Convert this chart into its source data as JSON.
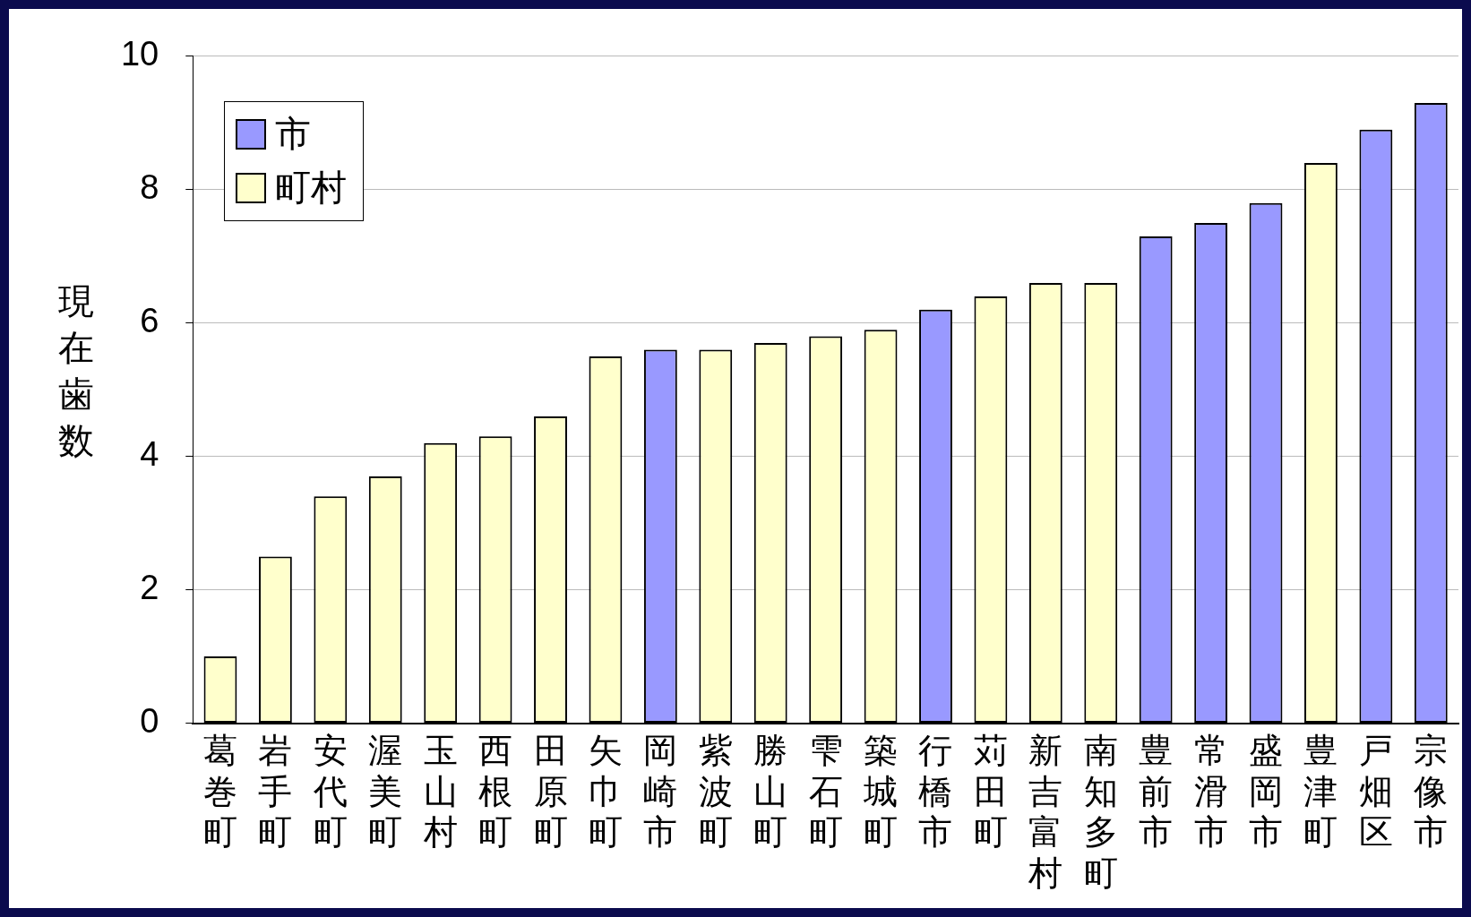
{
  "chart_data": {
    "type": "bar",
    "ylabel": "現在歯数",
    "legend": "top left",
    "grid": "y",
    "categories": [
      "葛巻町",
      "岩手町",
      "安代町",
      "渥美町",
      "玉山村",
      "西根町",
      "田原町",
      "矢巾町",
      "岡崎市",
      "紫波町",
      "勝山町",
      "雫石町",
      "築城町",
      "行橋市",
      "苅田町",
      "新吉富村",
      "南知多町",
      "豊前市",
      "常滑市",
      "盛岡市",
      "豊津町",
      "戸畑区",
      "宗像市"
    ],
    "series": [
      {
        "name": "市",
        "color": "#9999ff",
        "values": [
          null,
          null,
          null,
          null,
          null,
          null,
          null,
          null,
          5.6,
          null,
          null,
          null,
          null,
          6.2,
          null,
          null,
          null,
          7.3,
          7.5,
          7.8,
          null,
          8.9,
          9.3
        ]
      },
      {
        "name": "町村",
        "color": "#ffffcc",
        "values": [
          1.0,
          2.5,
          3.4,
          3.7,
          4.2,
          4.3,
          4.6,
          5.5,
          null,
          5.6,
          5.7,
          5.8,
          5.9,
          null,
          6.4,
          6.6,
          6.6,
          null,
          null,
          null,
          8.4,
          null,
          null
        ]
      }
    ],
    "ylim": [
      0,
      10
    ],
    "yticks": [
      0,
      2,
      4,
      6,
      8,
      10
    ]
  }
}
